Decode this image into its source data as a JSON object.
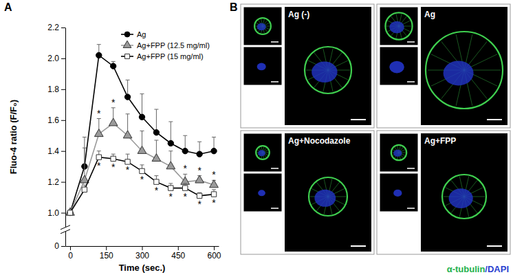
{
  "chart_data": {
    "type": "line",
    "panel": "A",
    "xlabel": "Time (sec.)",
    "ylabel": "Fluo-4 ratio (F/F₀)",
    "x": [
      0,
      60,
      120,
      180,
      240,
      300,
      360,
      420,
      480,
      540,
      600
    ],
    "xlim": [
      -20,
      620
    ],
    "xticks": [
      0,
      150,
      300,
      450,
      600
    ],
    "ylim": [
      0,
      2.2
    ],
    "yticks": [
      0,
      {
        "value": 1.0,
        "label": "1.0"
      },
      {
        "value": 1.2,
        "label": "1.2"
      },
      {
        "value": 1.4,
        "label": "1.4"
      },
      {
        "value": 1.6,
        "label": "1.6"
      },
      {
        "value": 1.8,
        "label": "1.8"
      },
      {
        "value": 2.0,
        "label": "2.0"
      },
      {
        "value": 2.2,
        "label": "2.2"
      }
    ],
    "legend": "upper right",
    "series": [
      {
        "name": "Ag",
        "color": "#000000",
        "marker": "circle",
        "values": [
          1.0,
          1.3,
          2.02,
          1.95,
          1.75,
          1.62,
          1.52,
          1.45,
          1.4,
          1.38,
          1.4
        ],
        "errors": [
          0,
          0.12,
          0.07,
          0.03,
          0.11,
          0.15,
          0.15,
          0.14,
          0.1,
          0.08,
          0.09
        ],
        "significance": [
          null,
          null,
          null,
          null,
          null,
          null,
          null,
          null,
          null,
          null,
          null
        ]
      },
      {
        "name": "Ag+FPP (12.5 mg/ml)",
        "color": "#9a9a9a",
        "marker": "triangle",
        "values": [
          1.0,
          1.21,
          1.51,
          1.58,
          1.5,
          1.4,
          1.35,
          1.3,
          1.2,
          1.21,
          1.18
        ],
        "errors": [
          0,
          0.28,
          0.1,
          0.1,
          0.14,
          0.13,
          0.12,
          0.1,
          0.05,
          0.03,
          0.03
        ],
        "significance": [
          null,
          null,
          "*",
          "*",
          null,
          null,
          null,
          null,
          "*",
          "*",
          "*"
        ]
      },
      {
        "name": "Ag+FPP (15 mg/ml)",
        "color": "#ffffff",
        "marker": "square",
        "values": [
          1.0,
          1.15,
          1.36,
          1.35,
          1.33,
          1.27,
          1.2,
          1.16,
          1.16,
          1.11,
          1.12
        ],
        "errors": [
          0,
          0.03,
          0.04,
          0.03,
          0.05,
          0.04,
          0.04,
          0.03,
          0.03,
          0.02,
          0.03
        ],
        "significance": [
          null,
          null,
          "*",
          "*",
          "*",
          "*",
          "*",
          "*",
          "*",
          "*",
          "*"
        ]
      }
    ]
  },
  "image_panel": {
    "panel": "B",
    "images": [
      {
        "label": "Ag (-)"
      },
      {
        "label": "Ag"
      },
      {
        "label": "Ag+Nocodazole"
      },
      {
        "label": "Ag+FPP"
      }
    ],
    "caption": [
      {
        "text": "α-tubulin",
        "color": "#22b14c"
      },
      {
        "text": "/DAPI",
        "color": "#2a3fd0"
      }
    ]
  }
}
